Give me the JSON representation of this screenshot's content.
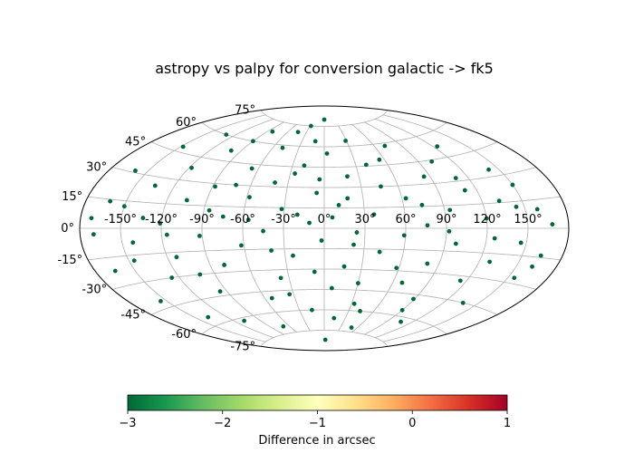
{
  "chart_data": {
    "type": "scatter",
    "projection": "aitoff",
    "title": "astropy vs palpy for conversion galactic -> fk5",
    "grid": true,
    "xlim": [
      -180,
      180
    ],
    "ylim": [
      -90,
      90
    ],
    "x_ticks": [
      "-150°",
      "-120°",
      "-90°",
      "-60°",
      "-30°",
      "0°",
      "30°",
      "60°",
      "90°",
      "120°",
      "150°"
    ],
    "y_ticks": [
      "-75°",
      "-60°",
      "-45°",
      "-30°",
      "-15°",
      "0°",
      "15°",
      "30°",
      "45°",
      "60°",
      "75°"
    ],
    "colorbar": {
      "label": "Difference in arcsec",
      "colormap": "RdYlGn_r",
      "range": [
        -3,
        1
      ],
      "ticks": [
        "−3",
        "−2",
        "−1",
        "0",
        "1"
      ],
      "tick_values": [
        -3,
        -2,
        -1,
        0,
        1
      ]
    },
    "point_color": "#006837",
    "point_color_value": -3,
    "series": [
      {
        "points": [
          [
            -172,
            5
          ],
          [
            -165,
            -22
          ],
          [
            -160,
            31
          ],
          [
            -155,
            -41
          ],
          [
            -150,
            12
          ],
          [
            -148,
            48
          ],
          [
            -142,
            -8
          ],
          [
            -138,
            -55
          ],
          [
            -135,
            25
          ],
          [
            -130,
            60
          ],
          [
            -126,
            -30
          ],
          [
            -121,
            3
          ],
          [
            -118,
            38
          ],
          [
            -113,
            -18
          ],
          [
            -109,
            -62
          ],
          [
            -105,
            18
          ],
          [
            -100,
            52
          ],
          [
            -96,
            -42
          ],
          [
            -92,
            -5
          ],
          [
            -88,
            28
          ],
          [
            -83,
            68
          ],
          [
            -79,
            -25
          ],
          [
            -75,
            8
          ],
          [
            -70,
            -70
          ],
          [
            -66,
            42
          ],
          [
            -62,
            -12
          ],
          [
            -58,
            22
          ],
          [
            -53,
            -50
          ],
          [
            -49,
            58
          ],
          [
            -45,
            -2
          ],
          [
            -41,
            33
          ],
          [
            -37,
            -36
          ],
          [
            -32,
            14
          ],
          [
            -28,
            75
          ],
          [
            -24,
            -20
          ],
          [
            -19,
            46
          ],
          [
            -15,
            -60
          ],
          [
            -11,
            4
          ],
          [
            -6,
            26
          ],
          [
            -2,
            -9
          ],
          [
            3,
            55
          ],
          [
            7,
            -44
          ],
          [
            11,
            17
          ],
          [
            16,
            -28
          ],
          [
            20,
            38
          ],
          [
            24,
            -3
          ],
          [
            29,
            64
          ],
          [
            33,
            -55
          ],
          [
            37,
            10
          ],
          [
            42,
            -17
          ],
          [
            46,
            30
          ],
          [
            50,
            -72
          ],
          [
            55,
            49
          ],
          [
            59,
            -5
          ],
          [
            63,
            21
          ],
          [
            68,
            -38
          ],
          [
            72,
            58
          ],
          [
            76,
            2
          ],
          [
            81,
            -24
          ],
          [
            85,
            35
          ],
          [
            89,
            -48
          ],
          [
            94,
            12
          ],
          [
            98,
            -10
          ],
          [
            102,
            44
          ],
          [
            107,
            -63
          ],
          [
            111,
            24
          ],
          [
            115,
            -33
          ],
          [
            120,
            6
          ],
          [
            124,
            52
          ],
          [
            128,
            -20
          ],
          [
            133,
            16
          ],
          [
            137,
            -45
          ],
          [
            142,
            34
          ],
          [
            146,
            -8
          ],
          [
            150,
            24
          ],
          [
            155,
            -27
          ],
          [
            159,
            10
          ],
          [
            164,
            -14
          ],
          [
            168,
            2
          ],
          [
            -170,
            -3
          ],
          [
            -162,
            14
          ],
          [
            -146,
            -18
          ],
          [
            -134,
            6
          ],
          [
            -116,
            -4
          ],
          [
            -102,
            -30
          ],
          [
            -86,
            12
          ],
          [
            -72,
            30
          ],
          [
            -56,
            6
          ],
          [
            -40,
            -16
          ],
          [
            -26,
            40
          ],
          [
            -8,
            -32
          ],
          [
            6,
            8
          ],
          [
            22,
            -12
          ],
          [
            40,
            46
          ],
          [
            58,
            -28
          ],
          [
            74,
            16
          ],
          [
            92,
            -2
          ],
          [
            110,
            32
          ],
          [
            126,
            -6
          ],
          [
            144,
            12
          ],
          [
            162,
            -20
          ],
          [
            -12,
            64
          ],
          [
            14,
            -66
          ],
          [
            -44,
            70
          ],
          [
            44,
            -60
          ],
          [
            -90,
            60
          ],
          [
            90,
            -56
          ],
          [
            0,
            80
          ],
          [
            4,
            -82
          ],
          [
            -20,
            10
          ],
          [
            18,
            22
          ],
          [
            -4,
            36
          ],
          [
            30,
            -40
          ],
          [
            -34,
            -48
          ]
        ]
      }
    ]
  }
}
